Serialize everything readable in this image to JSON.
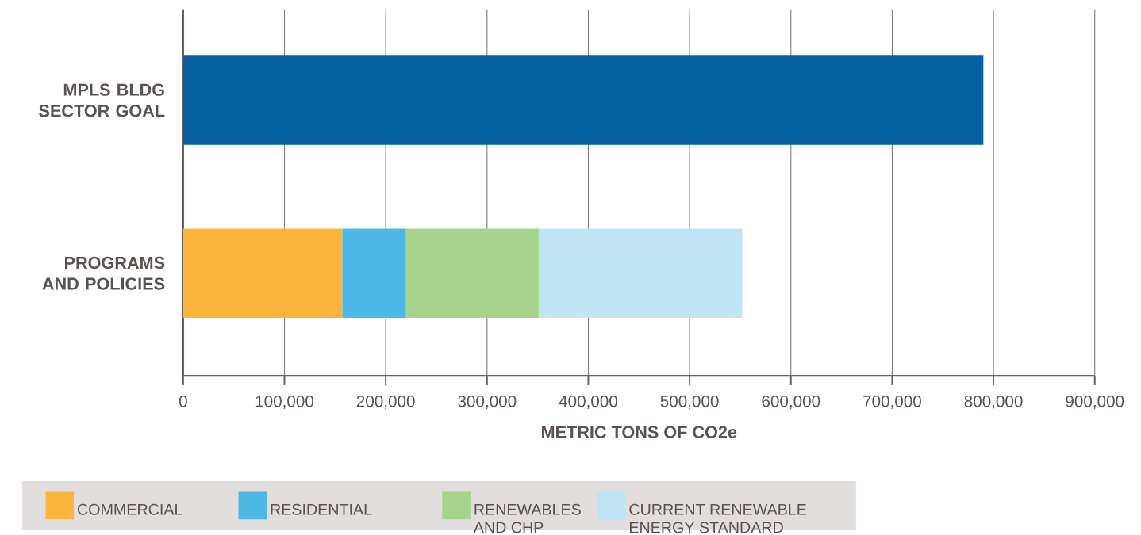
{
  "chart_data": {
    "type": "bar",
    "orientation": "horizontal",
    "stacked": true,
    "xlabel": "METRIC TONS OF CO2e",
    "categories": [
      "MPLS BLDG SECTOR GOAL",
      "PROGRAMS AND POLICIES"
    ],
    "series": [
      {
        "color": "#0560a0",
        "values": [
          790000,
          null
        ]
      },
      {
        "name": "COMMERCIAL",
        "color": "#fbb43c",
        "values": [
          null,
          157000
        ]
      },
      {
        "name": "RESIDENTIAL",
        "color": "#4db8e6",
        "values": [
          null,
          63000
        ]
      },
      {
        "name": "RENEWABLES AND CHP",
        "color": "#a8d38d",
        "values": [
          null,
          131000
        ]
      },
      {
        "name": "CURRENT RENEWABLE ENERGY STANDARD",
        "color": "#bfe5f5",
        "values": [
          null,
          201000
        ]
      }
    ],
    "xlim": [
      0,
      900000
    ],
    "xticks": [
      0,
      {
        "value": 100000,
        "label": "100,000"
      },
      {
        "value": 200000,
        "label": "200,000"
      },
      {
        "value": 300000,
        "label": "300,000"
      },
      {
        "value": 400000,
        "label": "400,000"
      },
      {
        "value": 500000,
        "label": "500,000"
      },
      {
        "value": 600000,
        "label": "600,000"
      },
      {
        "value": 700000,
        "label": "700,000"
      },
      {
        "value": 800000,
        "label": "800,000"
      },
      {
        "value": 900000,
        "label": "900,000"
      }
    ],
    "grid": "x",
    "legend": "bottom"
  }
}
